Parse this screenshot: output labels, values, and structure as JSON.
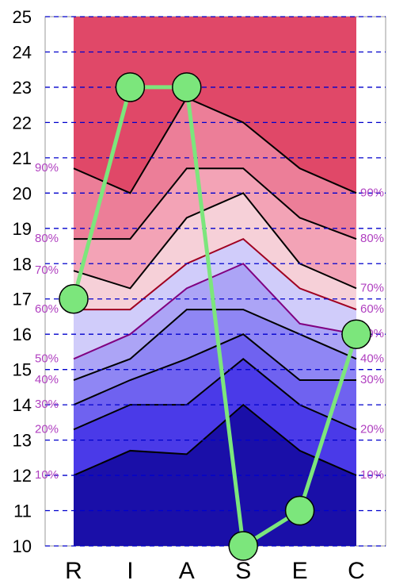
{
  "chart_data": {
    "type": "line",
    "categories": [
      "R",
      "I",
      "A",
      "S",
      "E",
      "C"
    ],
    "y_ticks": [
      10,
      11,
      12,
      13,
      14,
      15,
      16,
      17,
      18,
      19,
      20,
      21,
      22,
      23,
      24,
      25
    ],
    "ylim": [
      10,
      25
    ],
    "grid": "horizontal-dashed",
    "series": [
      {
        "values": [
          17,
          23,
          23,
          10,
          11,
          16
        ],
        "color": "#7ce67c"
      }
    ],
    "percentile_bands": [
      {
        "label": "10%",
        "values": [
          12.0,
          12.7,
          12.6,
          14.0,
          12.7,
          12.0
        ],
        "line_color": "#000000"
      },
      {
        "label": "20%",
        "values": [
          13.3,
          14.0,
          14.0,
          15.3,
          14.0,
          13.3
        ],
        "line_color": "#000000"
      },
      {
        "label": "30%",
        "values": [
          14.0,
          14.7,
          15.3,
          16.0,
          14.7,
          14.7
        ],
        "line_color": "#000000"
      },
      {
        "label": "40%",
        "values": [
          14.7,
          15.3,
          16.7,
          16.7,
          16.0,
          15.3
        ],
        "line_color": "#000000"
      },
      {
        "label": "50%",
        "values": [
          15.3,
          16.0,
          17.3,
          18.0,
          16.3,
          16.0
        ],
        "line_color": "#800080"
      },
      {
        "label": "60%",
        "values": [
          16.7,
          16.7,
          18.0,
          18.7,
          17.3,
          16.7
        ],
        "line_color": "#a00020"
      },
      {
        "label": "70%",
        "values": [
          17.8,
          17.3,
          19.3,
          20.0,
          18.0,
          17.3
        ],
        "line_color": "#000000"
      },
      {
        "label": "80%",
        "values": [
          18.7,
          18.7,
          20.7,
          20.7,
          19.3,
          18.7
        ],
        "line_color": "#000000"
      },
      {
        "label": "90%",
        "values": [
          20.7,
          20.0,
          22.7,
          22.0,
          20.7,
          20.0
        ],
        "line_color": "#000000"
      }
    ],
    "band_colors": [
      "#1a0fa8",
      "#4a3ae8",
      "#6f62f0",
      "#8f86f4",
      "#aca4f6",
      "#d0ccfa",
      "#f6d0d8",
      "#f3a3b6",
      "#ec7e98",
      "#e04868",
      "#b5002e"
    ],
    "colors": {
      "grid": "#0000cc",
      "axis": "#000000"
    }
  }
}
